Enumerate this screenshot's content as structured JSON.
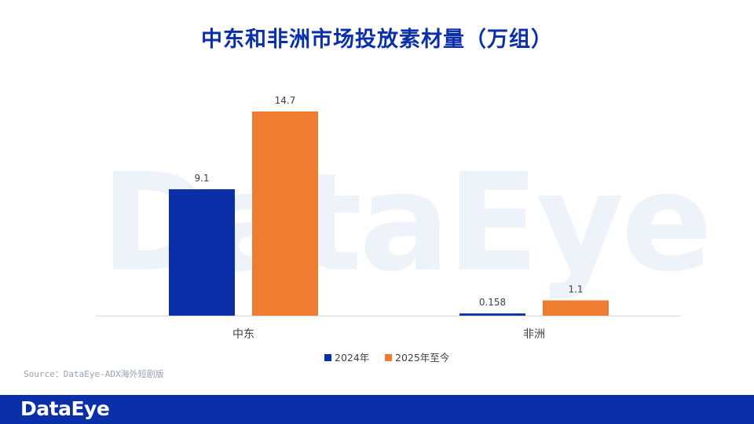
{
  "title": "中东和非洲市场投放素材量（万组）",
  "watermark": "DataEye",
  "source": "Source：DataEye-ADX海外短剧版",
  "footer": {
    "logo": "DataEye"
  },
  "colors": {
    "series_2024": "#0a2fa8",
    "series_2025": "#ef7d31",
    "title": "#0a2fa8",
    "footer": "#0a2fa8"
  },
  "chart_data": {
    "type": "bar",
    "categories": [
      "中东",
      "非洲"
    ],
    "series": [
      {
        "name": "2024年",
        "values": [
          9.1,
          0.158
        ],
        "labels": [
          "9.1",
          "0.158"
        ],
        "color": "#0a2fa8"
      },
      {
        "name": "2025年至今",
        "values": [
          14.7,
          1.1
        ],
        "labels": [
          "14.7",
          "1.1"
        ],
        "color": "#ef7d31"
      }
    ],
    "ylim": [
      0,
      14.7
    ],
    "grid": false,
    "legend": "bottom"
  }
}
